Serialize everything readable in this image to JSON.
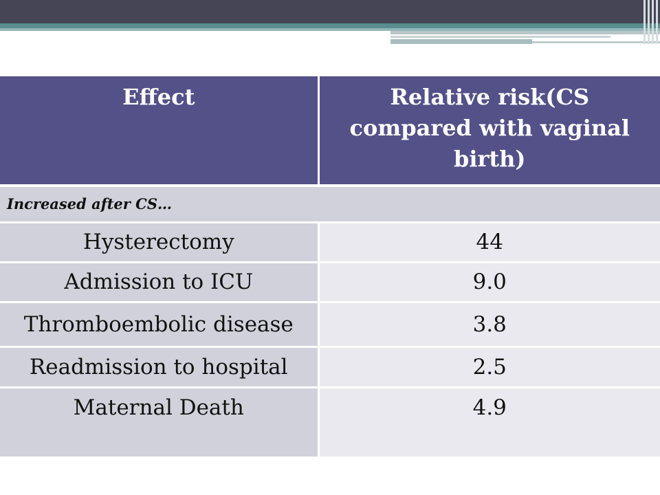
{
  "table": {
    "headers": [
      "Effect",
      "Relative risk(CS compared with vaginal birth)"
    ],
    "section_label": "Increased after CS…",
    "rows": [
      {
        "effect": "Hysterectomy",
        "relative_risk": "44"
      },
      {
        "effect": "Admission to ICU",
        "relative_risk": "9.0"
      },
      {
        "effect": "Thromboembolic disease",
        "relative_risk": "3.8"
      },
      {
        "effect": "Readmission to hospital",
        "relative_risk": "2.5"
      },
      {
        "effect": "Maternal Death",
        "relative_risk": "4.9"
      }
    ]
  },
  "colors": {
    "header_bg": "#535188",
    "cell_dark": "#d1d1db",
    "cell_light": "#e9e9ef",
    "top_band": "#454556",
    "accent_teal": "#5a8d8e"
  }
}
